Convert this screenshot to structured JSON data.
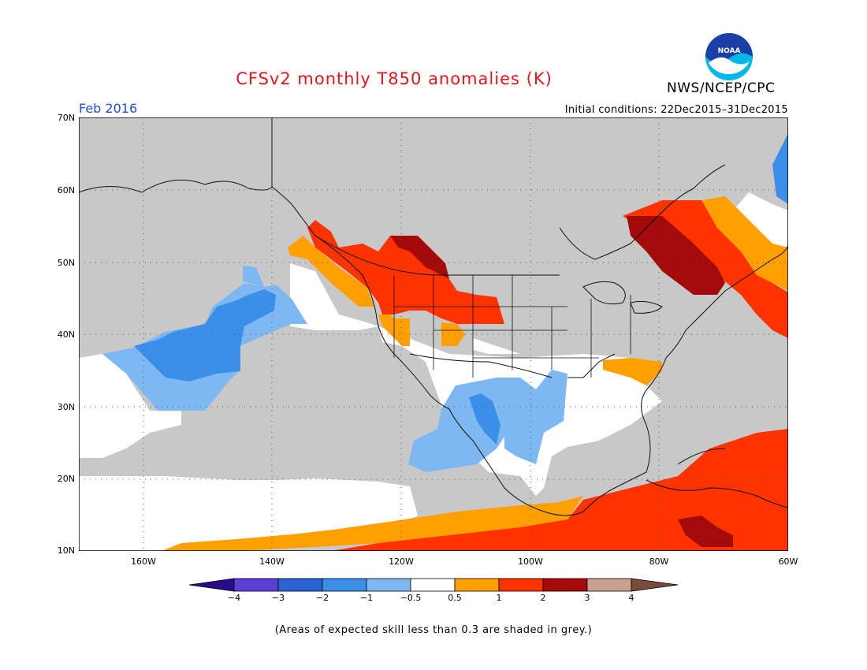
{
  "title": "CFSv2 monthly T850 anomalies (K)",
  "agency": "NWS/NCEP/CPC",
  "logo_text": "NOAA",
  "period": "Feb 2016",
  "initial_conditions": "Initial conditions: 22Dec2015–31Dec2015",
  "footnote": "(Areas of expected skill less than 0.3 are shaded in grey.)",
  "lat_labels": [
    "70N",
    "60N",
    "50N",
    "40N",
    "30N",
    "20N",
    "10N"
  ],
  "lon_labels": [
    "160W",
    "140W",
    "120W",
    "100W",
    "80W",
    "60W"
  ],
  "colorbar": {
    "labels": [
      "−4",
      "−3",
      "−2",
      "−1",
      "−0.5",
      "0.5",
      "1",
      "2",
      "3",
      "4"
    ],
    "colors": [
      "#2a0a8c",
      "#5a3fd6",
      "#2a64d0",
      "#3c8fe8",
      "#7eb8f2",
      "#ffffff",
      "#ff9f00",
      "#ff3300",
      "#a50a0a",
      "#c8a090",
      "#7a4a3a"
    ]
  },
  "colors": {
    "grey_low_skill": "#c8c8c8",
    "light_blue": "#7eb8f2",
    "mid_blue": "#3c8fe8",
    "orange": "#ff9f00",
    "red": "#ff3300",
    "dark_red": "#a50a0a"
  }
}
